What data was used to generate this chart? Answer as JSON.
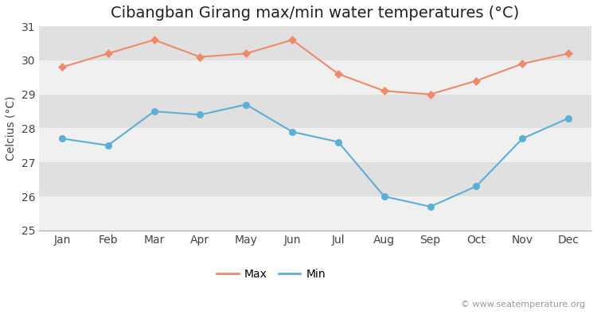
{
  "title": "Cibangban Girang max/min water temperatures (°C)",
  "ylabel": "Celcius (°C)",
  "months": [
    "Jan",
    "Feb",
    "Mar",
    "Apr",
    "May",
    "Jun",
    "Jul",
    "Aug",
    "Sep",
    "Oct",
    "Nov",
    "Dec"
  ],
  "max_values": [
    29.8,
    30.2,
    30.6,
    30.1,
    30.2,
    30.6,
    29.6,
    29.1,
    29.0,
    29.4,
    29.9,
    30.2
  ],
  "min_values": [
    27.7,
    27.5,
    28.5,
    28.4,
    28.7,
    27.9,
    27.6,
    26.0,
    25.7,
    26.3,
    27.7,
    28.3
  ],
  "max_color": "#f0896a",
  "min_color": "#5bafd6",
  "ylim": [
    25,
    31
  ],
  "yticks": [
    25,
    26,
    27,
    28,
    29,
    30,
    31
  ],
  "figure_bg_color": "#ffffff",
  "plot_bg_color": "#e8e8e8",
  "grid_color": "#f5f5f5",
  "watermark": "© www.seatemperature.org",
  "title_fontsize": 14,
  "label_fontsize": 10,
  "tick_fontsize": 10,
  "watermark_fontsize": 8,
  "legend_fontsize": 10
}
